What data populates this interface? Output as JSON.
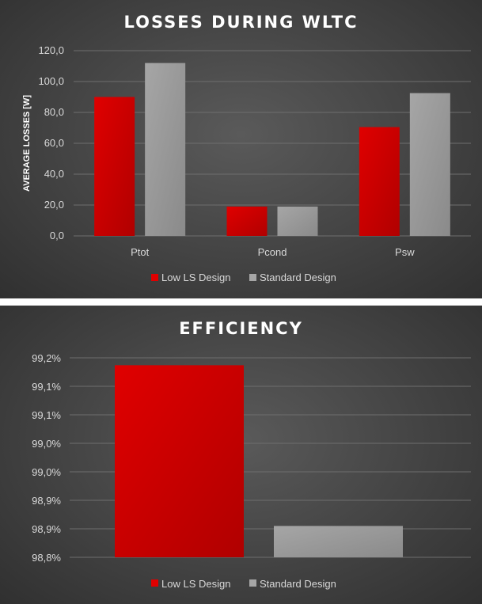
{
  "colors": {
    "low_ls": "#e00000",
    "standard": "#a6a6a6",
    "grid": "#6e6e6e",
    "text": "#d9d9d9"
  },
  "chart_data": [
    {
      "type": "bar",
      "title": "LOSSES DURING WLTC",
      "ylabel": "AVERAGE LOSSES [W]",
      "xlabel": "",
      "categories": [
        "Ptot",
        "Pcond",
        "Psw"
      ],
      "series": [
        {
          "name": "Low LS Design",
          "values": [
            90,
            19,
            70.5
          ]
        },
        {
          "name": "Standard Design",
          "values": [
            112,
            19,
            92.5
          ]
        }
      ],
      "ylim": [
        0,
        120
      ],
      "yticks": [
        "0,0",
        "20,0",
        "40,0",
        "60,0",
        "80,0",
        "100,0",
        "120,0"
      ],
      "grid": true,
      "legend": "bottom"
    },
    {
      "type": "bar",
      "title": "EFFICIENCY",
      "ylabel": "",
      "xlabel": "",
      "categories": [
        ""
      ],
      "series": [
        {
          "name": "Low LS Design",
          "values": [
            99.137
          ]
        },
        {
          "name": "Standard Design",
          "values": [
            98.855
          ]
        }
      ],
      "ylim": [
        98.8,
        99.15
      ],
      "yticks": [
        "98,8%",
        "98,9%",
        "98,9%",
        "99,0%",
        "99,0%",
        "99,1%",
        "99,1%",
        "99,2%"
      ],
      "grid": true,
      "legend": "bottom"
    }
  ]
}
